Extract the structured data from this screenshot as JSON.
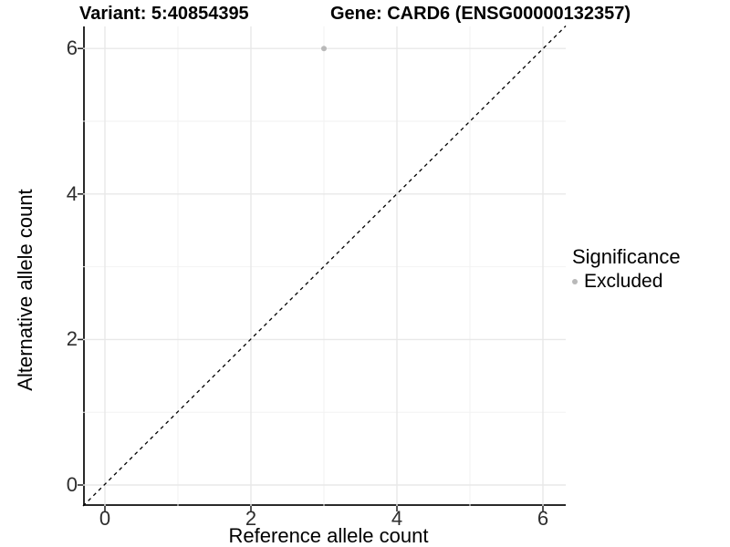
{
  "chart_data": {
    "type": "scatter",
    "title_left": "Variant: 5:40854395",
    "title_right": "Gene: CARD6 (ENSG00000132357)",
    "xlabel": "Reference allele count",
    "ylabel": "Alternative allele count",
    "xlim": [
      -0.3,
      6.3
    ],
    "ylim": [
      -0.3,
      6.3
    ],
    "x_ticks": [
      0,
      2,
      4,
      6
    ],
    "y_ticks": [
      0,
      2,
      4,
      6
    ],
    "x_minor_ticks": [
      1,
      3,
      5
    ],
    "y_minor_ticks": [
      1,
      3,
      5
    ],
    "grid": "on",
    "reference_line": {
      "kind": "identity y=x",
      "style": "dashed",
      "color": "#000000"
    },
    "points": [
      {
        "x": 3,
        "y": 6,
        "significance": "Excluded"
      }
    ],
    "point_color": "#b9b9b9",
    "legend": {
      "title": "Significance",
      "position": "right",
      "items": [
        {
          "label": "Excluded",
          "color": "#b9b9b9",
          "marker": "circle"
        }
      ]
    },
    "colors": {
      "axis_line": "#2a2a2a",
      "major_grid": "#e8e8e8",
      "minor_grid": "#f2f2f2",
      "tick_label": "#2e2e2e"
    }
  }
}
